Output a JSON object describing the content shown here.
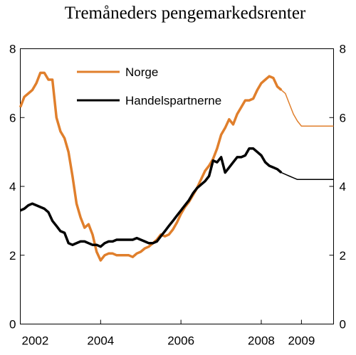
{
  "chart_data": {
    "type": "line",
    "title": "Tremåneders pengemarkedsrenter",
    "xlabel": "",
    "ylabel": "",
    "xlim": [
      2002.0,
      2009.8
    ],
    "ylim": [
      0,
      8
    ],
    "yticks": [
      0,
      2,
      4,
      6,
      8
    ],
    "xticks": [
      {
        "label": "2002",
        "value": 2002.0
      },
      {
        "label": "2004",
        "value": 2004.0
      },
      {
        "label": "2006",
        "value": 2006.0
      },
      {
        "label": "2008",
        "value": 2008.0
      },
      {
        "label": "2009",
        "value": 2009.0
      }
    ],
    "grid": false,
    "legend_position": "top-left",
    "projection_start": 2008.5,
    "series": [
      {
        "name": "Norge",
        "color": "#e07f2c",
        "x": [
          2002.0,
          2002.1,
          2002.2,
          2002.3,
          2002.4,
          2002.5,
          2002.6,
          2002.7,
          2002.8,
          2002.9,
          2003.0,
          2003.1,
          2003.2,
          2003.3,
          2003.4,
          2003.5,
          2003.6,
          2003.7,
          2003.8,
          2003.9,
          2004.0,
          2004.1,
          2004.2,
          2004.3,
          2004.4,
          2004.5,
          2004.6,
          2004.7,
          2004.8,
          2004.9,
          2005.0,
          2005.1,
          2005.2,
          2005.3,
          2005.4,
          2005.5,
          2005.6,
          2005.7,
          2005.8,
          2005.9,
          2006.0,
          2006.1,
          2006.2,
          2006.3,
          2006.4,
          2006.5,
          2006.6,
          2006.7,
          2006.8,
          2006.9,
          2007.0,
          2007.1,
          2007.2,
          2007.3,
          2007.4,
          2007.5,
          2007.6,
          2007.7,
          2007.8,
          2007.9,
          2008.0,
          2008.1,
          2008.2,
          2008.3,
          2008.4,
          2008.5,
          2008.6,
          2008.7,
          2008.8,
          2008.9,
          2009.0,
          2009.1,
          2009.2,
          2009.3,
          2009.4,
          2009.5,
          2009.6,
          2009.7,
          2009.8
        ],
        "values": [
          6.3,
          6.6,
          6.7,
          6.8,
          7.0,
          7.3,
          7.3,
          7.1,
          7.1,
          6.0,
          5.6,
          5.4,
          5.0,
          4.3,
          3.5,
          3.1,
          2.8,
          2.9,
          2.6,
          2.1,
          1.85,
          2.0,
          2.05,
          2.05,
          2.0,
          2.0,
          2.0,
          2.0,
          1.95,
          2.05,
          2.1,
          2.2,
          2.25,
          2.35,
          2.45,
          2.6,
          2.55,
          2.6,
          2.75,
          2.95,
          3.2,
          3.4,
          3.55,
          3.75,
          3.95,
          4.2,
          4.45,
          4.6,
          4.8,
          5.1,
          5.5,
          5.7,
          5.95,
          5.8,
          6.1,
          6.3,
          6.5,
          6.5,
          6.55,
          6.8,
          7.0,
          7.1,
          7.2,
          7.15,
          6.9,
          6.8,
          6.7,
          6.4,
          6.1,
          5.9,
          5.75,
          5.75,
          5.75,
          5.75,
          5.75,
          5.75,
          5.75,
          5.75,
          5.75
        ]
      },
      {
        "name": "Handelspartnerne",
        "color": "#000000",
        "x": [
          2002.0,
          2002.1,
          2002.2,
          2002.3,
          2002.4,
          2002.5,
          2002.6,
          2002.7,
          2002.8,
          2002.9,
          2003.0,
          2003.1,
          2003.2,
          2003.3,
          2003.4,
          2003.5,
          2003.6,
          2003.7,
          2003.8,
          2003.9,
          2004.0,
          2004.1,
          2004.2,
          2004.3,
          2004.4,
          2004.5,
          2004.6,
          2004.7,
          2004.8,
          2004.9,
          2005.0,
          2005.1,
          2005.2,
          2005.3,
          2005.4,
          2005.5,
          2005.6,
          2005.7,
          2005.8,
          2005.9,
          2006.0,
          2006.1,
          2006.2,
          2006.3,
          2006.4,
          2006.5,
          2006.6,
          2006.7,
          2006.8,
          2006.9,
          2007.0,
          2007.1,
          2007.2,
          2007.3,
          2007.4,
          2007.5,
          2007.6,
          2007.7,
          2007.8,
          2007.9,
          2008.0,
          2008.1,
          2008.2,
          2008.3,
          2008.4,
          2008.5,
          2008.6,
          2008.7,
          2008.8,
          2008.9,
          2009.0,
          2009.1,
          2009.2,
          2009.3,
          2009.4,
          2009.5,
          2009.6,
          2009.7,
          2009.8
        ],
        "values": [
          3.3,
          3.35,
          3.45,
          3.5,
          3.45,
          3.4,
          3.35,
          3.25,
          3.0,
          2.85,
          2.7,
          2.65,
          2.35,
          2.3,
          2.35,
          2.4,
          2.4,
          2.35,
          2.3,
          2.3,
          2.25,
          2.35,
          2.4,
          2.4,
          2.45,
          2.45,
          2.45,
          2.45,
          2.45,
          2.5,
          2.45,
          2.4,
          2.35,
          2.35,
          2.4,
          2.55,
          2.7,
          2.85,
          3.0,
          3.15,
          3.3,
          3.45,
          3.6,
          3.8,
          3.95,
          4.05,
          4.15,
          4.3,
          4.75,
          4.7,
          4.85,
          4.4,
          4.55,
          4.7,
          4.85,
          4.85,
          4.9,
          5.1,
          5.1,
          5.0,
          4.9,
          4.7,
          4.6,
          4.55,
          4.5,
          4.4,
          4.35,
          4.3,
          4.25,
          4.2,
          4.2,
          4.2,
          4.2,
          4.2,
          4.2,
          4.2,
          4.2,
          4.2,
          4.2
        ]
      }
    ]
  }
}
